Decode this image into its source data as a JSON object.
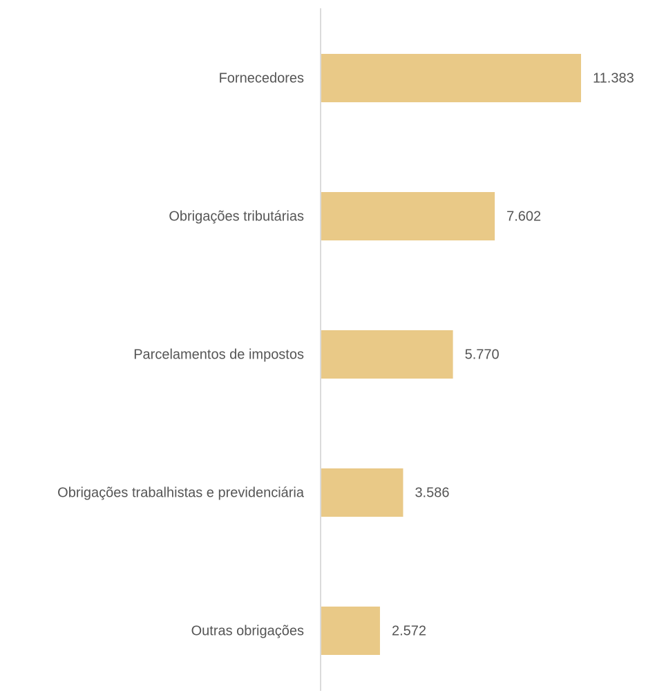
{
  "chart_data": {
    "type": "barh",
    "categories": [
      "Fornecedores",
      "Obrigações tributárias",
      "Parcelamentos de impostos",
      "Obrigações trabalhistas e previdenciária",
      "Outras obrigações"
    ],
    "values": [
      11383,
      7602,
      5770,
      3586,
      2572
    ],
    "value_labels": [
      "11.383",
      "7.602",
      "5.770",
      "3.586",
      "2.572"
    ],
    "color": "#e9c987"
  }
}
